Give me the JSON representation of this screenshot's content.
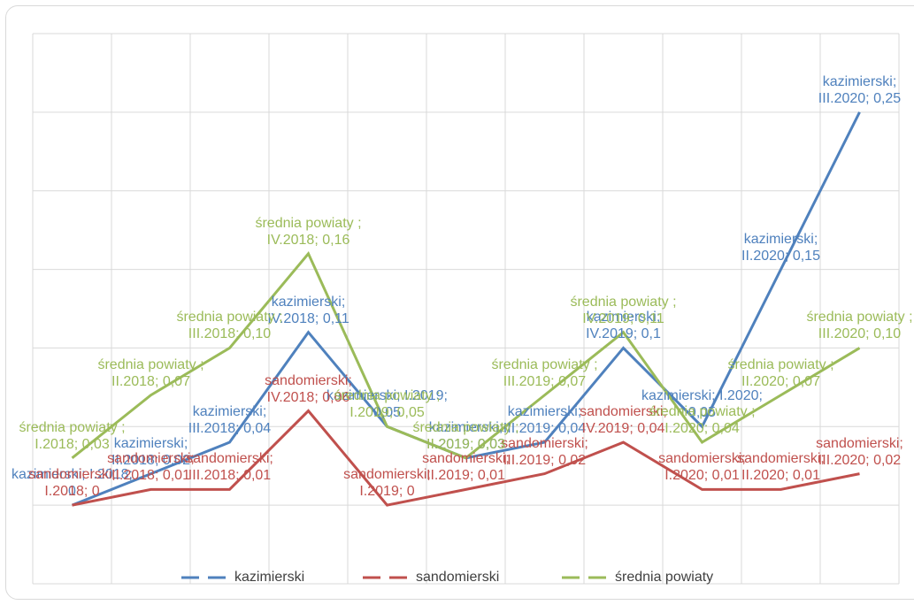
{
  "chart_data": {
    "type": "line",
    "categories": [
      "I.2018",
      "II.2018",
      "III.2018",
      "IV.2018",
      "I.2019",
      "II.2019",
      "III.2019",
      "IV.2019",
      "I.2020",
      "II.2020",
      "III.2020"
    ],
    "series": [
      {
        "name": "kazimierski",
        "color": "#4f81bd",
        "values": [
          0,
          0.02,
          0.04,
          0.11,
          0.05,
          0.03,
          0.04,
          0.1,
          0.05,
          0.15,
          0.25
        ],
        "value_labels": [
          "kazimierski; I.2018; 0",
          "kazimierski; II.2018; 0,02",
          "kazimierski; III.2018; 0,04",
          "kazimierski; IV.2018; 0,11",
          "kazimierski; I.2019; 0,05",
          "kazimierski; II.2019; 0,03",
          "kazimierski; III.2019; 0,04",
          "kazimierski; IV.2019; 0,1",
          "kazimierski; I.2020; 0,05",
          "kazimierski; II.2020; 0,15",
          "kazimierski; III.2020; 0,25"
        ]
      },
      {
        "name": "sandomierski",
        "color": "#c0504d",
        "values": [
          0,
          0.01,
          0.01,
          0.06,
          0,
          0.01,
          0.02,
          0.04,
          0.01,
          0.01,
          0.02
        ],
        "value_labels": [
          "sandomierski; I.2018; 0",
          "sandomierski; II.2018; 0,01",
          "sandomierski; III.2018; 0,01",
          "sandomierski; IV.2018; 0,06",
          "sandomierski; I.2019; 0",
          "sandomierski; II.2019; 0,01",
          "sandomierski; III.2019; 0,02",
          "sandomierski; IV.2019; 0,04",
          "sandomierski; I.2020; 0,01",
          "sandomierski; II.2020; 0,01",
          "sandomierski; III.2020; 0,02"
        ]
      },
      {
        "name": "średnia powiaty",
        "color": "#9bbb59",
        "values": [
          0.03,
          0.07,
          0.1,
          0.16,
          0.05,
          0.03,
          0.07,
          0.11,
          0.04,
          0.07,
          0.1
        ],
        "value_labels": [
          "średnia powiaty ; I.2018; 0,03",
          "średnia powiaty ; II.2018; 0,07",
          "średnia powiaty ; III.2018; 0,10",
          "średnia powiaty ; IV.2018; 0,16",
          "średnia powiaty ; I.2019; 0,05",
          "średnia powiaty ; II.2019; 0,03",
          "średnia powiaty ; III.2019; 0,07",
          "średnia powiaty ; IV.2019; 0,11",
          "średnia powiaty ; I.2020; 0,04",
          "średnia powiaty ; II.2020; 0,07",
          "średnia powiaty ; III.2020; 0,10"
        ]
      }
    ],
    "ylim": [
      -0.05,
      0.3
    ],
    "yticks": [
      -0.05,
      0,
      0.05,
      0.1,
      0.15,
      0.2,
      0.25,
      0.3
    ],
    "grid": true,
    "legend": "bottom"
  }
}
